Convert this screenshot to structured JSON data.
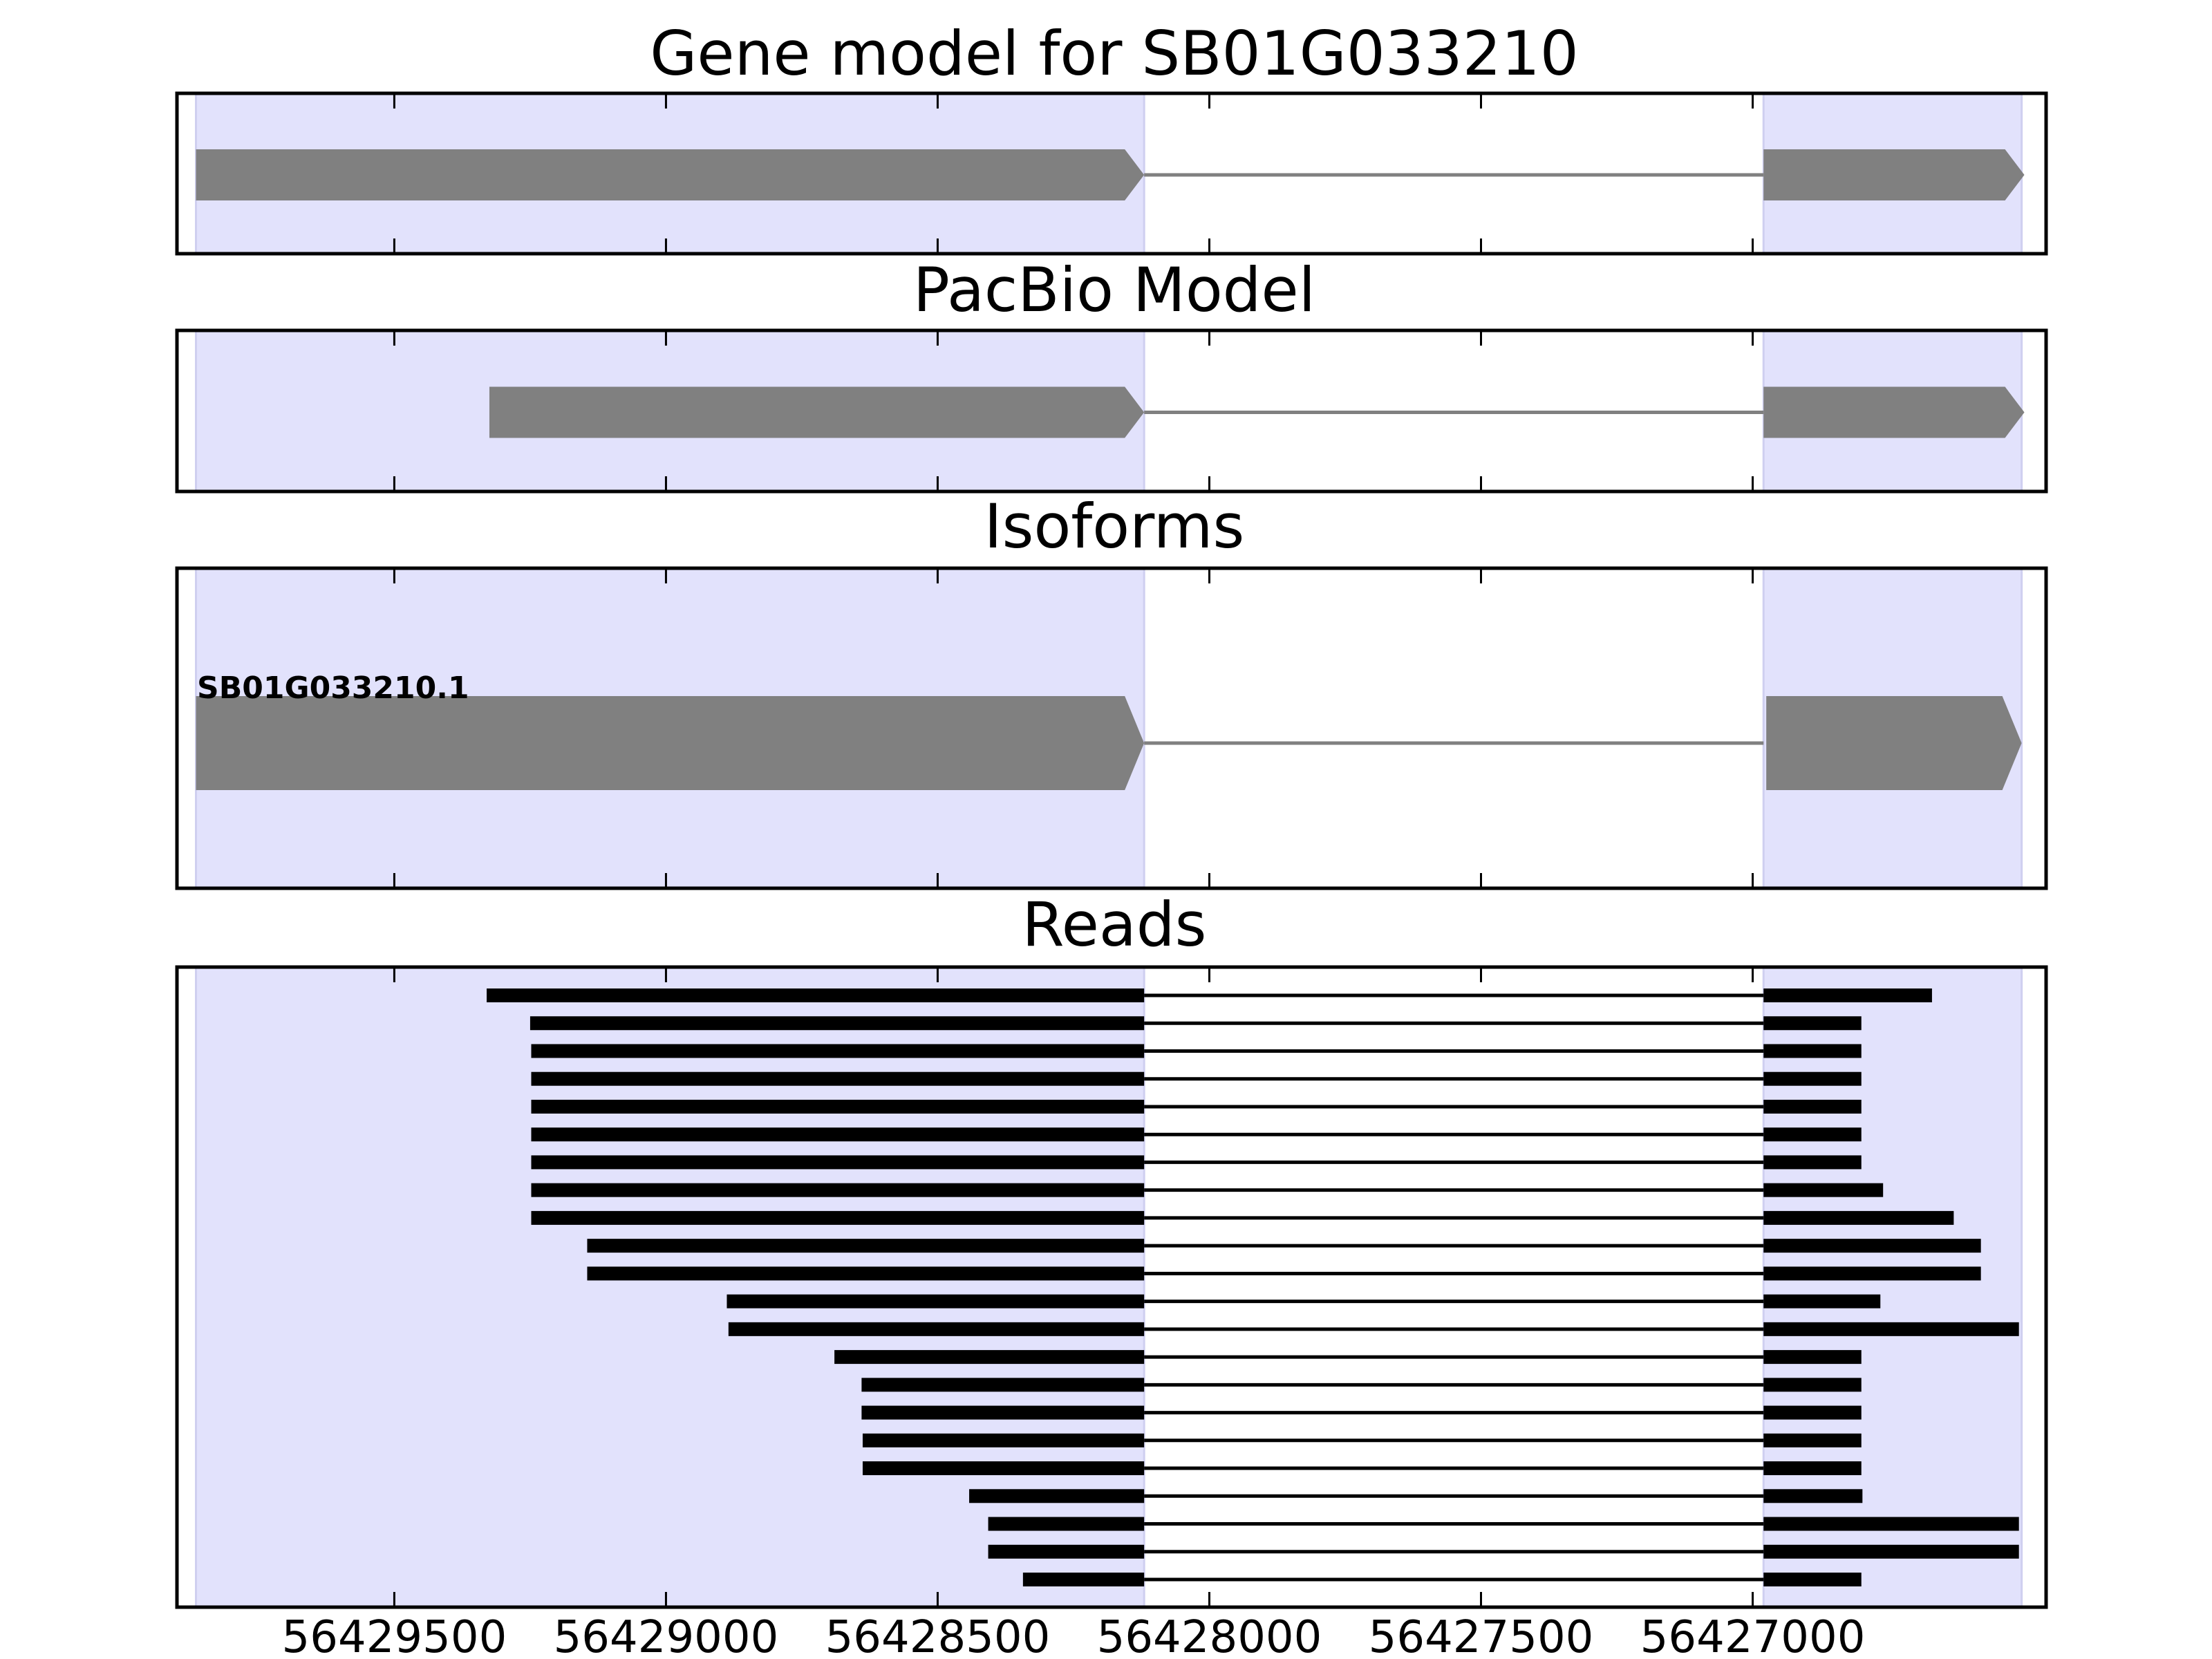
{
  "chart_data": {
    "type": "gene-structure",
    "x_range": [
      56429900,
      56426460
    ],
    "x_ticks": [
      56429500,
      56429000,
      56428500,
      56428000,
      56427500,
      56427000
    ],
    "colors": {
      "exon_region": "#e2e2fc",
      "model": "#808080",
      "reads": "#000000"
    },
    "panels": [
      {
        "title": "Gene model for SB01G033210",
        "kind": "model",
        "exons": [
          [
            56429865,
            56428120
          ],
          [
            56426980,
            56426500
          ]
        ],
        "label": ""
      },
      {
        "title": "PacBio Model",
        "kind": "model",
        "exons": [
          [
            56429325,
            56428120
          ],
          [
            56426980,
            56426500
          ]
        ],
        "label": ""
      },
      {
        "title": "Isoforms",
        "kind": "model",
        "exons": [
          [
            56429865,
            56428120
          ],
          [
            56426975,
            56426505
          ]
        ],
        "label": "SB01G033210.1"
      },
      {
        "title": "Reads",
        "kind": "reads",
        "reads": [
          [
            56429330,
            56426670
          ],
          [
            56429250,
            56426800
          ],
          [
            56429248,
            56426800
          ],
          [
            56429248,
            56426800
          ],
          [
            56429248,
            56426800
          ],
          [
            56429248,
            56426800
          ],
          [
            56429248,
            56426800
          ],
          [
            56429248,
            56426760
          ],
          [
            56429248,
            56426630
          ],
          [
            56429145,
            56426580
          ],
          [
            56429145,
            56426580
          ],
          [
            56428888,
            56426765
          ],
          [
            56428885,
            56426510
          ],
          [
            56428690,
            56426800
          ],
          [
            56428640,
            56426800
          ],
          [
            56428640,
            56426800
          ],
          [
            56428638,
            56426800
          ],
          [
            56428638,
            56426800
          ],
          [
            56428442,
            56426798
          ],
          [
            56428407,
            56426510
          ],
          [
            56428407,
            56426510
          ],
          [
            56428343,
            56426800
          ]
        ]
      }
    ],
    "exon_regions": [
      [
        56429865,
        56428120
      ],
      [
        56426980,
        56426505
      ]
    ],
    "intron": [
      56428120,
      56426980
    ]
  }
}
